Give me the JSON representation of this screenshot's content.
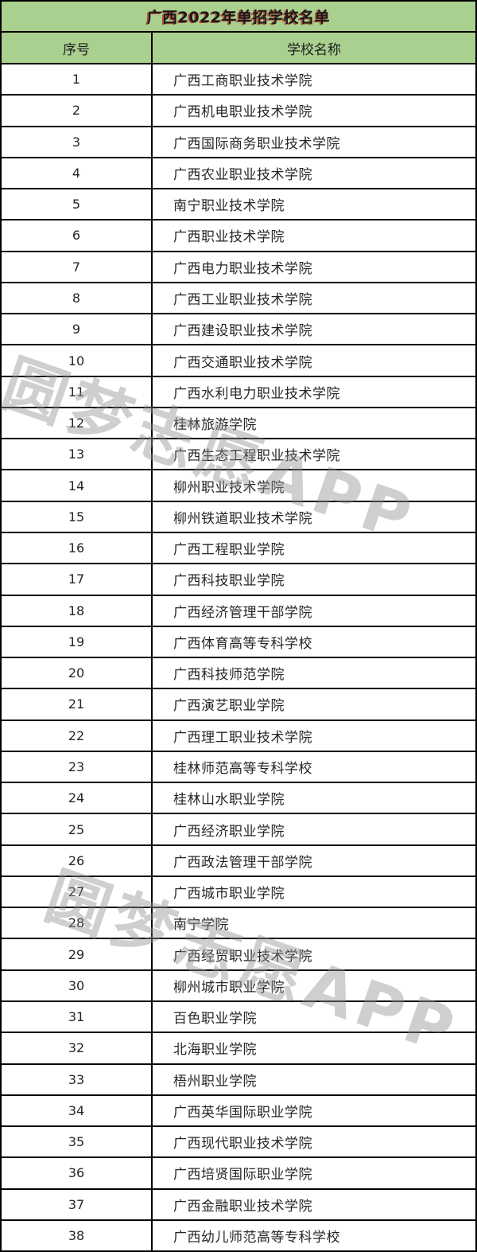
{
  "table": {
    "title": "广西2022年单招学校名单",
    "columns": [
      "序号",
      "学校名称"
    ],
    "rows": [
      {
        "no": "1",
        "name": "广西工商职业技术学院"
      },
      {
        "no": "2",
        "name": "广西机电职业技术学院"
      },
      {
        "no": "3",
        "name": "广西国际商务职业技术学院"
      },
      {
        "no": "4",
        "name": "广西农业职业技术学院"
      },
      {
        "no": "5",
        "name": "南宁职业技术学院"
      },
      {
        "no": "6",
        "name": "广西职业技术学院"
      },
      {
        "no": "7",
        "name": "广西电力职业技术学院"
      },
      {
        "no": "8",
        "name": "广西工业职业技术学院"
      },
      {
        "no": "9",
        "name": "广西建设职业技术学院"
      },
      {
        "no": "10",
        "name": "广西交通职业技术学院"
      },
      {
        "no": "11",
        "name": "广西水利电力职业技术学院"
      },
      {
        "no": "12",
        "name": "桂林旅游学院"
      },
      {
        "no": "13",
        "name": "广西生态工程职业技术学院"
      },
      {
        "no": "14",
        "name": "柳州职业技术学院"
      },
      {
        "no": "15",
        "name": "柳州铁道职业技术学院"
      },
      {
        "no": "16",
        "name": "广西工程职业学院"
      },
      {
        "no": "17",
        "name": "广西科技职业学院"
      },
      {
        "no": "18",
        "name": "广西经济管理干部学院"
      },
      {
        "no": "19",
        "name": "广西体育高等专科学校"
      },
      {
        "no": "20",
        "name": "广西科技师范学院"
      },
      {
        "no": "21",
        "name": "广西演艺职业学院"
      },
      {
        "no": "22",
        "name": "广西理工职业技术学院"
      },
      {
        "no": "23",
        "name": "桂林师范高等专科学校"
      },
      {
        "no": "24",
        "name": "桂林山水职业学院"
      },
      {
        "no": "25",
        "name": "广西经济职业学院"
      },
      {
        "no": "26",
        "name": "广西政法管理干部学院"
      },
      {
        "no": "27",
        "name": "广西城市职业学院"
      },
      {
        "no": "28",
        "name": "南宁学院"
      },
      {
        "no": "29",
        "name": "广西经贸职业技术学院"
      },
      {
        "no": "30",
        "name": "柳州城市职业学院"
      },
      {
        "no": "31",
        "name": "百色职业学院"
      },
      {
        "no": "32",
        "name": "北海职业学院"
      },
      {
        "no": "33",
        "name": "梧州职业学院"
      },
      {
        "no": "34",
        "name": "广西英华国际职业学院"
      },
      {
        "no": "35",
        "name": "广西现代职业技术学院"
      },
      {
        "no": "36",
        "name": "广西培贤国际职业学院"
      },
      {
        "no": "37",
        "name": "广西金融职业技术学院"
      },
      {
        "no": "38",
        "name": "广西幼儿师范高等专科学校"
      }
    ]
  },
  "watermark": {
    "text": "圆梦志愿APP"
  },
  "colors": {
    "header_bg": "#A9D08E",
    "border": "#000000",
    "body_text": "#262626",
    "title_text": "#1A1A1A",
    "title_accent": "#B22218",
    "watermark": "#949494"
  }
}
